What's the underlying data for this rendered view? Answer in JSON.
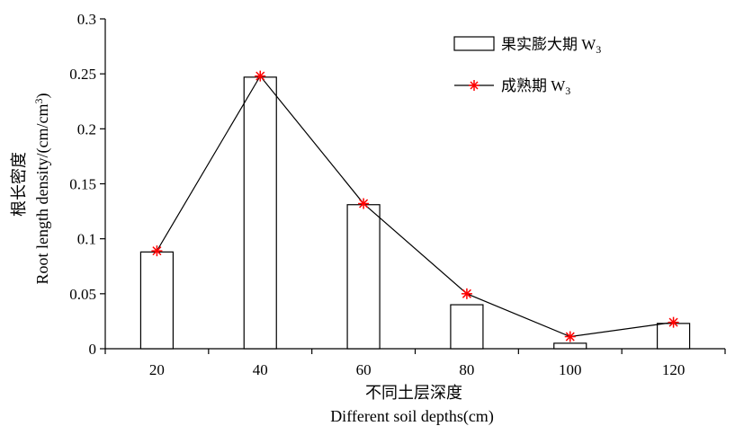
{
  "chart_data": {
    "type": "bar",
    "categories": [
      "20",
      "40",
      "60",
      "80",
      "100",
      "120"
    ],
    "ylim": [
      0,
      0.3
    ],
    "yticks": [
      "0",
      "0.05",
      "0.1",
      "0.15",
      "0.2",
      "0.25",
      "0.3"
    ],
    "series": [
      {
        "name": "果实膨大期 W",
        "name_sub": "3",
        "type": "bar",
        "values": [
          0.088,
          0.247,
          0.131,
          0.04,
          0.005,
          0.023
        ]
      },
      {
        "name": "成熟期 W",
        "name_sub": "3",
        "type": "line",
        "values": [
          0.089,
          0.248,
          0.132,
          0.05,
          0.011,
          0.024
        ]
      }
    ],
    "xlabel_cn": "不同土层深度",
    "xlabel_en": "Different soil depths",
    "xlabel_unit": "(cm)",
    "ylabel_cn": "根长密度",
    "ylabel_en": "Root length density/(cm/cm",
    "ylabel_sup": "3",
    "ylabel_end": ")",
    "colors": {
      "bar_fill": "#ffffff",
      "bar_stroke": "#000000",
      "line": "#000000",
      "marker": "#ff0000"
    },
    "legend_position": "top-right",
    "grid": false
  }
}
